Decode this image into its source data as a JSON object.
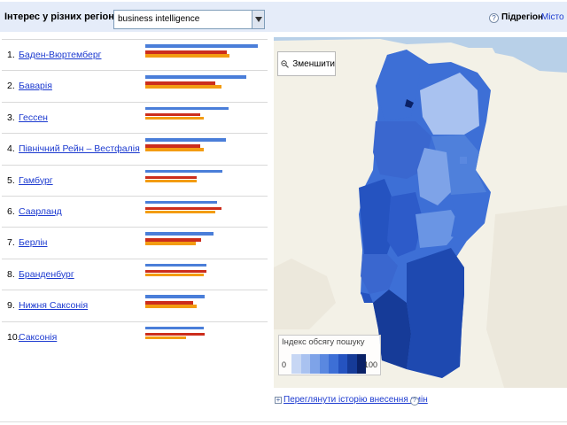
{
  "header": {
    "title": "Інтерес у різних регіонах",
    "search_term": "business intelligence",
    "help_badge": "?",
    "subregion_label": "Підрегіон",
    "city_link": "Місто"
  },
  "regions": [
    {
      "rank": "1.",
      "name": "Баден-Вюртемберг",
      "bars": {
        "blue": 0.96,
        "red": 0.7,
        "orange": 0.72
      }
    },
    {
      "rank": "2.",
      "name": "Баварія",
      "bars": {
        "blue": 0.86,
        "red": 0.6,
        "orange": 0.65
      }
    },
    {
      "rank": "3.",
      "name": "Гессен",
      "bars": {
        "blue": 0.71,
        "red": 0.47,
        "orange": 0.5
      }
    },
    {
      "rank": "4.",
      "name": "Північний Рейн – Вестфалія",
      "bars": {
        "blue": 0.69,
        "red": 0.47,
        "orange": 0.5
      }
    },
    {
      "rank": "5.",
      "name": "Гамбург",
      "bars": {
        "blue": 0.66,
        "red": 0.44,
        "orange": 0.44
      }
    },
    {
      "rank": "6.",
      "name": "Саарланд",
      "bars": {
        "blue": 0.61,
        "red": 0.65,
        "orange": 0.6
      }
    },
    {
      "rank": "7.",
      "name": "Берлін",
      "bars": {
        "blue": 0.58,
        "red": 0.48,
        "orange": 0.43
      }
    },
    {
      "rank": "8.",
      "name": "Бранденбург",
      "bars": {
        "blue": 0.52,
        "red": 0.52,
        "orange": 0.5
      }
    },
    {
      "rank": "9.",
      "name": "Нижня Саксонія",
      "bars": {
        "blue": 0.51,
        "red": 0.41,
        "orange": 0.44
      }
    },
    {
      "rank": "10.",
      "name": "Саксонія",
      "bars": {
        "blue": 0.5,
        "red": 0.51,
        "orange": 0.35
      }
    }
  ],
  "map": {
    "zoom_out_label": "Зменшити",
    "legend_title": "Індекс обсягу пошуку",
    "legend_min": "0",
    "legend_max": "100",
    "legend_colors": [
      "#c7d7f4",
      "#a9c2f0",
      "#7ea3e8",
      "#5a88e0",
      "#3d6fd6",
      "#2553c0",
      "#163b98",
      "#0a2166"
    ]
  },
  "footer": {
    "history_link": "Переглянути історію внесення змін",
    "help_badge": "?",
    "plus": "+"
  },
  "colors": {
    "header_bg": "#e5ecf9",
    "link": "#1c3ad0",
    "bar_blue": "#4a7ed9",
    "bar_red": "#cc2d1c",
    "bar_orange": "#f39c12"
  }
}
